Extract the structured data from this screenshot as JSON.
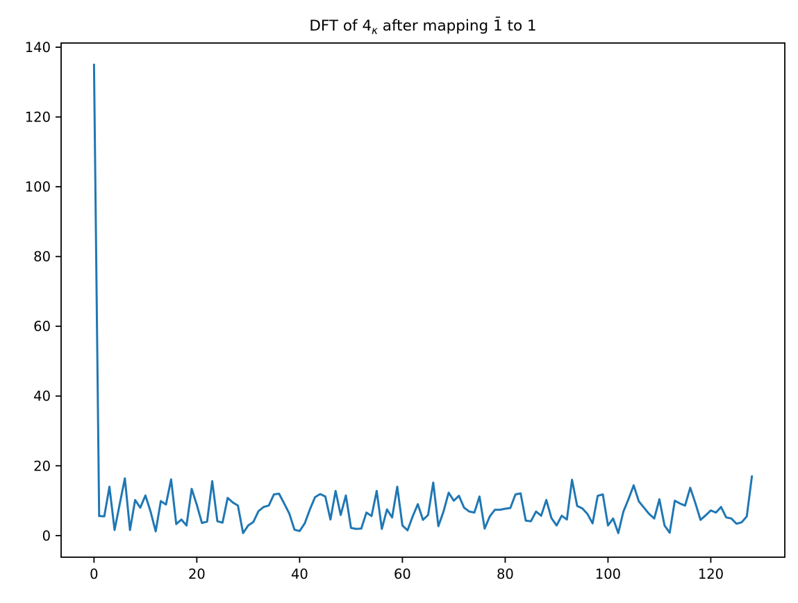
{
  "figure": {
    "background": "#ffffff",
    "title": {
      "prefix": "DFT of 4",
      "subscript": "κ",
      "suffix": " after mapping 1̄ to 1"
    }
  },
  "chart_data": {
    "type": "line",
    "title": "DFT of 4κ after mapping 1̄ to 1",
    "xlabel": "",
    "ylabel": "",
    "x": {
      "start": 0,
      "step": 1,
      "end": 128,
      "note": "x value equals sample index k"
    },
    "values": [
      135,
      5.6,
      5.5,
      14,
      1.6,
      9,
      16.4,
      1.6,
      10.2,
      8,
      11.5,
      6.9,
      1.2,
      9.9,
      8.9,
      16.1,
      3.3,
      4.6,
      2.9,
      13.4,
      8.8,
      3.6,
      4,
      15.6,
      4.1,
      3.7,
      10.8,
      9.5,
      8.6,
      0.7,
      2.9,
      3.9,
      7,
      8.2,
      8.6,
      11.8,
      12,
      9.2,
      6.3,
      1.7,
      1.3,
      3.5,
      7.5,
      11,
      11.9,
      11.2,
      4.6,
      12.8,
      5.9,
      11.5,
      2.2,
      1.9,
      2,
      6.6,
      5.6,
      12.8,
      1.9,
      7.5,
      5.2,
      14,
      2.9,
      1.5,
      5.5,
      9,
      4.5,
      5.9,
      15.2,
      2.7,
      6.9,
      12.3,
      10,
      11.4,
      8,
      6.9,
      6.6,
      11.2,
      2,
      5.5,
      7.4,
      7.4,
      7.7,
      7.9,
      11.8,
      12.1,
      4.3,
      4.1,
      6.9,
      5.7,
      10.2,
      5,
      2.9,
      5.7,
      4.6,
      16,
      8.5,
      7.8,
      6.2,
      3.5,
      11.4,
      11.8,
      2.9,
      4.9,
      0.7,
      6.9,
      10.5,
      14.4,
      9.8,
      8,
      6.2,
      4.9,
      10.4,
      2.9,
      0.8,
      10,
      9.2,
      8.6,
      13.7,
      9.3,
      4.5,
      5.8,
      7.2,
      6.6,
      8.2,
      5.2,
      4.9,
      3.4,
      3.8,
      5.5,
      17
    ],
    "xlim": [
      -6.4,
      134.4
    ],
    "ylim": [
      -6.2,
      141.2
    ],
    "xticks": [
      0,
      20,
      40,
      60,
      80,
      100,
      120
    ],
    "yticks": [
      0,
      20,
      40,
      60,
      80,
      100,
      120,
      140
    ],
    "grid": false,
    "legend": null,
    "line_color": "#1f77b4",
    "line_width": 3,
    "axes_color": "#000000",
    "tick_label_color": "#000000"
  }
}
